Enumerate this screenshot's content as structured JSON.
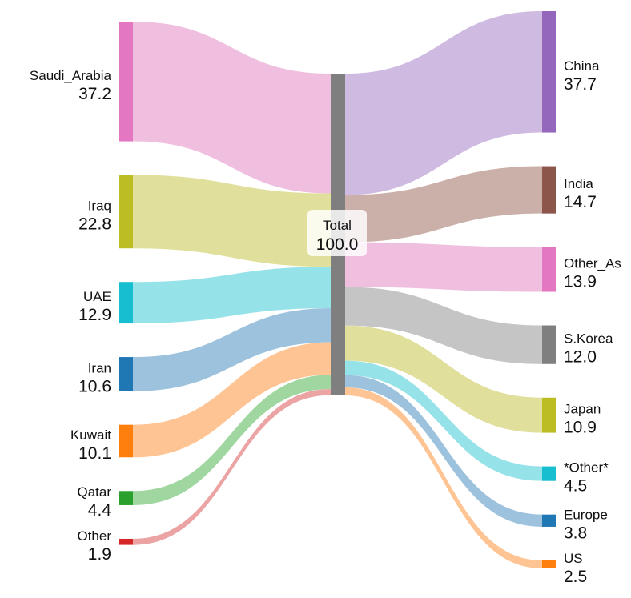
{
  "chart_data": {
    "type": "sankey",
    "title": "",
    "center": {
      "name": "Total",
      "value": 100.0,
      "value_label": "100.0",
      "color": "#7f7f7f"
    },
    "sources": [
      {
        "name": "Saudi_Arabia",
        "value": 37.2,
        "value_label": "37.2",
        "color": "#e377c2",
        "link_color": "#f0bfe0"
      },
      {
        "name": "Iraq",
        "value": 22.8,
        "value_label": "22.8",
        "color": "#bcbd22",
        "link_color": "#e0e09c"
      },
      {
        "name": "UAE",
        "value": 12.9,
        "value_label": "12.9",
        "color": "#17becf",
        "link_color": "#96e2e9"
      },
      {
        "name": "Iran",
        "value": 10.6,
        "value_label": "10.6",
        "color": "#1f77b4",
        "link_color": "#9cc2dd"
      },
      {
        "name": "Kuwait",
        "value": 10.1,
        "value_label": "10.1",
        "color": "#ff7f0e",
        "link_color": "#ffc494"
      },
      {
        "name": "Qatar",
        "value": 4.4,
        "value_label": "4.4",
        "color": "#2ca02c",
        "link_color": "#a0d6a0"
      },
      {
        "name": "Other",
        "value": 1.9,
        "value_label": "1.9",
        "color": "#d62728",
        "link_color": "#eca3a4"
      }
    ],
    "targets": [
      {
        "name": "China",
        "value": 37.7,
        "value_label": "37.7",
        "color": "#9467bd",
        "link_color": "#cfbae2"
      },
      {
        "name": "India",
        "value": 14.7,
        "value_label": "14.7",
        "color": "#8c564b",
        "link_color": "#cbb0aa"
      },
      {
        "name": "Other_Asia",
        "display_name": "Other_As",
        "value": 13.9,
        "value_label": "13.9",
        "color": "#e377c2",
        "link_color": "#f0bfe0"
      },
      {
        "name": "S.Korea",
        "value": 12.0,
        "value_label": "12.0",
        "color": "#7f7f7f",
        "link_color": "#c5c5c5"
      },
      {
        "name": "Japan",
        "value": 10.9,
        "value_label": "10.9",
        "color": "#bcbd22",
        "link_color": "#e0e09c"
      },
      {
        "name": "*Other*",
        "value": 4.5,
        "value_label": "4.5",
        "color": "#17becf",
        "link_color": "#96e2e9"
      },
      {
        "name": "Europe",
        "value": 3.8,
        "value_label": "3.8",
        "color": "#1f77b4",
        "link_color": "#9cc2dd"
      },
      {
        "name": "US",
        "value": 2.5,
        "value_label": "2.5",
        "color": "#ff7f0e",
        "link_color": "#ffc494"
      }
    ]
  }
}
